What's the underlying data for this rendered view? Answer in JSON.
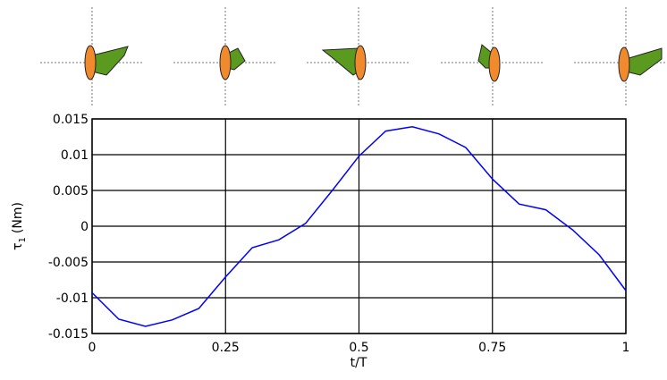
{
  "chart_data": {
    "type": "line",
    "x_label": "t/T",
    "y_label": {
      "symbol": "τ",
      "subscript": "1",
      "unit": "(Nm)"
    },
    "x": [
      0,
      0.05,
      0.1,
      0.15,
      0.2,
      0.25,
      0.3,
      0.35,
      0.4,
      0.45,
      0.5,
      0.55,
      0.6,
      0.65,
      0.7,
      0.75,
      0.8,
      0.85,
      0.9,
      0.95,
      1
    ],
    "series": [
      {
        "color": "#0000ff",
        "values": [
          -0.0093,
          -0.013,
          -0.014,
          -0.0131,
          -0.0115,
          -0.0071,
          -0.003,
          -0.0019,
          0.0004,
          0.005,
          0.0098,
          0.0133,
          0.0139,
          0.0129,
          0.011,
          0.0066,
          0.0031,
          0.0023,
          -0.0005,
          -0.004,
          -0.009
        ]
      }
    ],
    "xlim": [
      0,
      1
    ],
    "xticks": [
      0,
      0.25,
      0.5,
      0.75,
      1
    ],
    "ylim": [
      -0.015,
      0.015
    ],
    "yticks": [
      -0.015,
      -0.01,
      -0.005,
      0,
      0.005,
      0.01,
      0.015
    ],
    "grid": true
  }
}
